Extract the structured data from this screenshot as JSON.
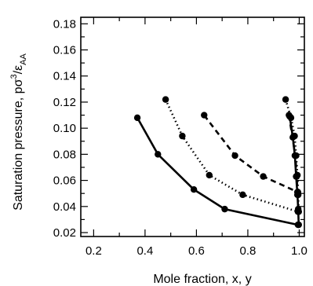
{
  "chart_data": {
    "type": "line",
    "xlabel": "Mole fraction, x, y",
    "ylabel_prefix": "Saturation pressure, p",
    "ylabel_sup": "3",
    "ylabel_mid": "/ε",
    "ylabel_sub": "AA",
    "ylabel_sigma": "σ",
    "xlim": [
      0.15,
      1.02
    ],
    "ylim": [
      0.017,
      0.185
    ],
    "x_ticks": [
      "0.2",
      "0.4",
      "0.6",
      "0.8",
      "1.0"
    ],
    "y_ticks": [
      "0.02",
      "0.04",
      "0.06",
      "0.08",
      "0.10",
      "0.12",
      "0.14",
      "0.16",
      "0.18"
    ],
    "series": [
      {
        "style": "solid",
        "points": [
          [
            0.37,
            0.108
          ],
          [
            0.45,
            0.08
          ],
          [
            0.59,
            0.053
          ],
          [
            0.71,
            0.038
          ],
          [
            0.995,
            0.026
          ]
        ]
      },
      {
        "style": "dotted",
        "points": [
          [
            0.48,
            0.122
          ],
          [
            0.545,
            0.094
          ],
          [
            0.65,
            0.064
          ],
          [
            0.78,
            0.049
          ],
          [
            0.995,
            0.036
          ]
        ]
      },
      {
        "style": "dashed",
        "points": [
          [
            0.63,
            0.11
          ],
          [
            0.75,
            0.079
          ],
          [
            0.86,
            0.063
          ],
          [
            0.995,
            0.051
          ]
        ]
      },
      {
        "style": "solid",
        "points": [
          [
            0.963,
            0.109
          ],
          [
            0.975,
            0.093
          ],
          [
            0.983,
            0.079
          ],
          [
            0.988,
            0.063
          ],
          [
            0.993,
            0.049
          ],
          [
            0.996,
            0.038
          ],
          [
            0.998,
            0.026
          ]
        ]
      },
      {
        "style": "dotted",
        "points": [
          [
            0.947,
            0.122
          ],
          [
            0.968,
            0.108
          ],
          [
            0.982,
            0.094
          ],
          [
            0.988,
            0.079
          ],
          [
            0.993,
            0.064
          ],
          [
            0.996,
            0.049
          ],
          [
            0.998,
            0.036
          ]
        ]
      },
      {
        "style": "dashed",
        "points": [
          [
            0.96,
            0.11
          ],
          [
            0.985,
            0.079
          ],
          [
            0.99,
            0.063
          ],
          [
            0.993,
            0.051
          ]
        ]
      }
    ]
  }
}
